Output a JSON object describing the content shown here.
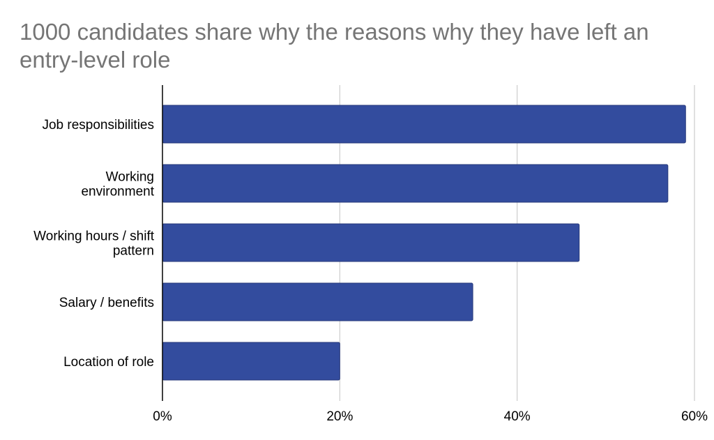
{
  "chart_data": {
    "type": "bar",
    "orientation": "horizontal",
    "title": "1000 candidates share why the reasons why they have left an entry-level role",
    "xlabel": "",
    "ylabel": "",
    "categories": [
      "Job responsibilities",
      "Working environment",
      "Working hours / shift pattern",
      "Salary / benefits",
      "Location of role"
    ],
    "category_lines": [
      [
        "Job responsibilities"
      ],
      [
        "Working",
        "environment"
      ],
      [
        "Working hours / shift",
        "pattern"
      ],
      [
        "Salary / benefits"
      ],
      [
        "Location of role"
      ]
    ],
    "values": [
      59,
      57,
      47,
      35,
      20
    ],
    "value_unit": "%",
    "xlim": [
      0,
      60
    ],
    "xticks": [
      0,
      20,
      40,
      60
    ],
    "xtick_labels": [
      "0%",
      "20%",
      "40%",
      "60%"
    ],
    "grid": true,
    "legend": "none",
    "colors": {
      "bar": "#334c9e",
      "bar_stroke": "#27397a",
      "grid": "#cccccc",
      "axis": "#000000",
      "title": "#757575"
    }
  }
}
